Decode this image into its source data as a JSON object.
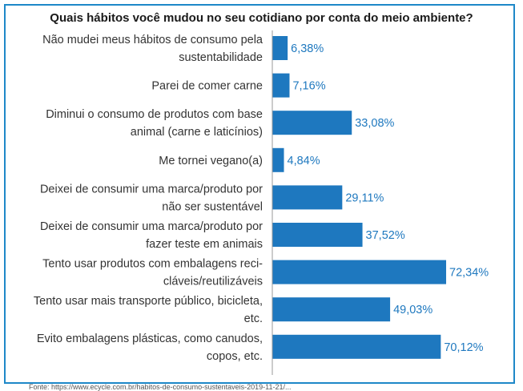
{
  "chart_data": {
    "type": "bar",
    "orientation": "horizontal",
    "title": "Quais hábitos você mudou no seu cotidiano por conta do meio ambiente?",
    "categories": [
      [
        "Não mudei meus hábitos de consumo pela",
        "sustentabilidade"
      ],
      [
        "Parei de comer carne"
      ],
      [
        "Diminui o consumo de produtos com base",
        "animal (carne e laticínios)"
      ],
      [
        "Me tornei vegano(a)"
      ],
      [
        "Deixei de consumir uma marca/produto por",
        "não ser sustentável"
      ],
      [
        "Deixei de consumir uma marca/produto por",
        "fazer teste em animais"
      ],
      [
        "Tento usar produtos com embalagens reci-",
        "cláveis/reutilizáveis"
      ],
      [
        "Tento usar mais transporte público, bicicleta,",
        "etc."
      ],
      [
        "Evito embalagens plásticas, como canudos,",
        "copos, etc."
      ]
    ],
    "values": [
      6.38,
      7.16,
      33.08,
      4.84,
      29.11,
      37.52,
      72.34,
      49.03,
      70.12
    ],
    "value_labels": [
      "6,38%",
      "7,16%",
      "33,08%",
      "4,84%",
      "29,11%",
      "37,52%",
      "72,34%",
      "49,03%",
      "70,12%"
    ],
    "xlim": [
      0,
      100
    ],
    "bar_color": "#1e78bf",
    "label_color": "#1e78bf",
    "grid": false,
    "legend": "none"
  },
  "frame_color": "#1e88c8",
  "source_text": "Fonte: https://www.ecycle.com.br/habitos-de-consumo-sustentaveis-2019-11-21/..."
}
